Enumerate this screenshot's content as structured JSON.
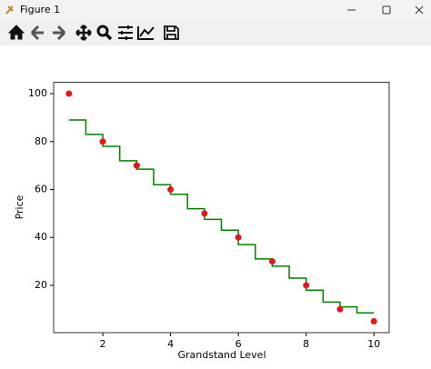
{
  "window": {
    "title": "Figure 1"
  },
  "chart_data": {
    "type": "scatter",
    "xlabel": "Grandstand Level",
    "ylabel": "Price",
    "xlim": [
      0.55,
      10.45
    ],
    "ylim": [
      0.25,
      104.75
    ],
    "xticks": [
      2,
      4,
      6,
      8,
      10
    ],
    "yticks": [
      20,
      40,
      60,
      80,
      100
    ],
    "grid": false,
    "series": [
      {
        "type": "step",
        "color": "#008000",
        "x": [
          1,
          1.5,
          2,
          2.5,
          3,
          3.5,
          4,
          4.5,
          5,
          5.5,
          6,
          6.5,
          7,
          7.5,
          8,
          8.5,
          9,
          9.5,
          10
        ],
        "values": [
          89,
          83,
          78,
          72,
          68.5,
          62,
          58,
          52,
          47.5,
          43,
          37,
          31,
          28,
          23,
          18,
          13,
          11,
          8.5,
          8.5
        ]
      },
      {
        "type": "scatter",
        "color": "#e8141b",
        "x": [
          1,
          2,
          3,
          4,
          5,
          6,
          7,
          8,
          9,
          10
        ],
        "values": [
          100,
          80,
          70,
          60,
          50,
          40,
          30,
          20,
          10,
          5
        ]
      }
    ]
  }
}
